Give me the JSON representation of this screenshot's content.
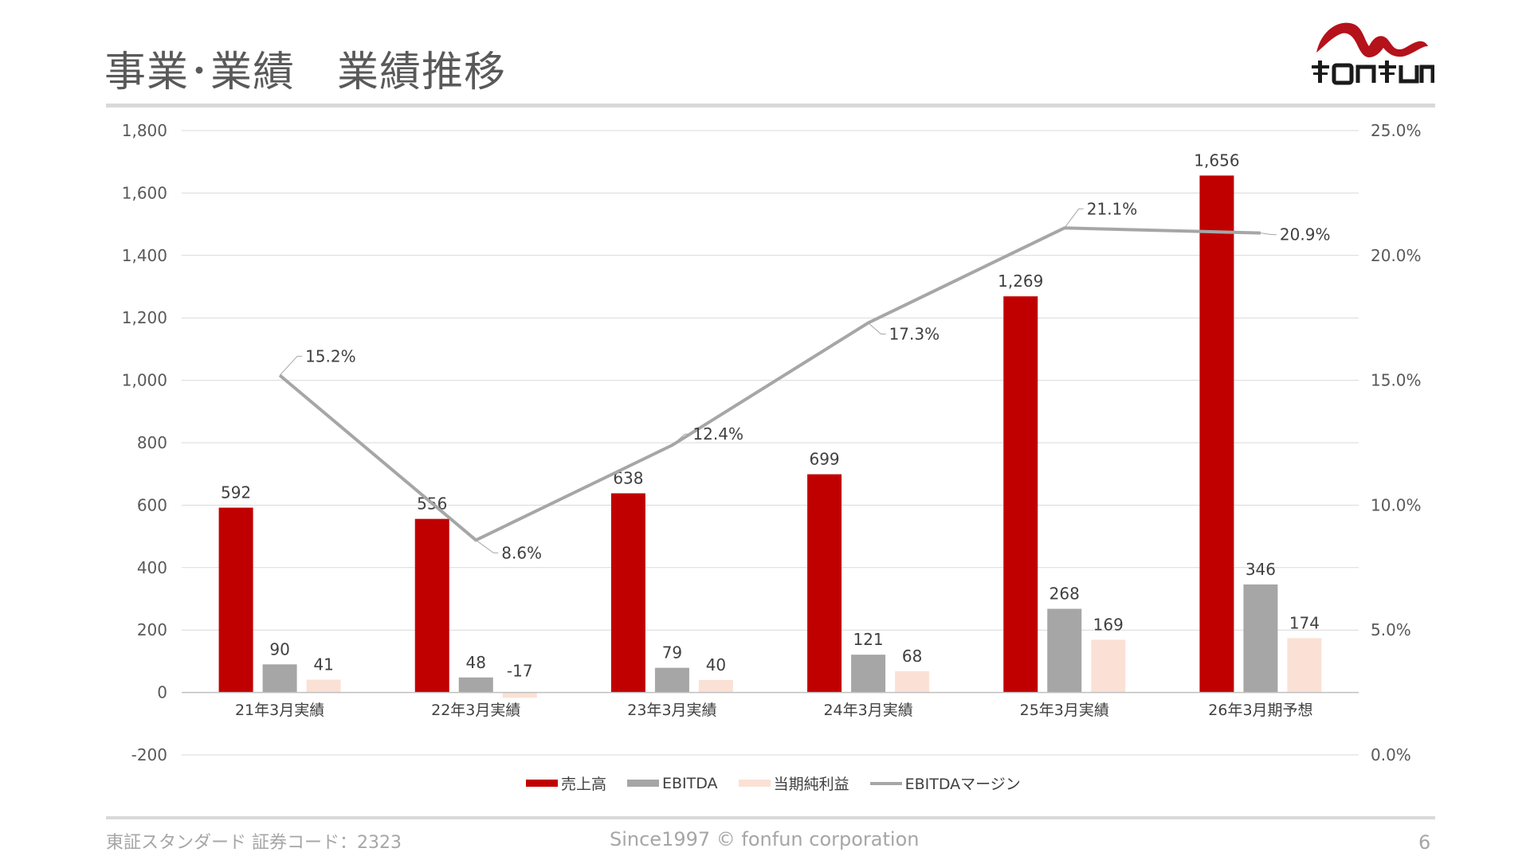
{
  "page": {
    "title": "事業･業績　業績推移",
    "brand": "FONFUN",
    "footer_left": "東証スタンダード 証券コード：2323",
    "footer_center": "Since1997 © fonfun corporation",
    "page_number": "6"
  },
  "colors": {
    "sales": "#c00000",
    "ebitda": "#a6a6a6",
    "net_income": "#fbe1d5",
    "margin": "#a6a6a6",
    "logo": "#b5121b"
  },
  "chart_data": {
    "type": "bar",
    "categories": [
      "21年3月実績",
      "22年3月実績",
      "23年3月実績",
      "24年3月実績",
      "25年3月実績",
      "26年3月期予想"
    ],
    "series": [
      {
        "name": "売上高",
        "values": [
          592,
          556,
          638,
          699,
          1269,
          1656
        ],
        "labels": [
          "592",
          "556",
          "638",
          "699",
          "1,269",
          "1,656"
        ]
      },
      {
        "name": "EBITDA",
        "values": [
          90,
          48,
          79,
          121,
          268,
          346
        ],
        "labels": [
          "90",
          "48",
          "79",
          "121",
          "268",
          "346"
        ]
      },
      {
        "name": "当期純利益",
        "values": [
          41,
          -17,
          40,
          68,
          169,
          174
        ],
        "labels": [
          "41",
          "-17",
          "40",
          "68",
          "169",
          "174"
        ]
      }
    ],
    "line_series": {
      "name": "EBITDAマージン",
      "axis": "right",
      "values": [
        15.2,
        8.6,
        12.4,
        17.3,
        21.1,
        20.9
      ],
      "labels": [
        "15.2%",
        "8.6%",
        "12.4%",
        "17.3%",
        "21.1%",
        "20.9%"
      ]
    },
    "ylim": [
      -200,
      1800
    ],
    "yticks": [
      "-200",
      "0",
      "200",
      "400",
      "600",
      "800",
      "1,000",
      "1,200",
      "1,400",
      "1,600",
      "1,800"
    ],
    "y2lim": [
      0,
      25
    ],
    "y2ticks": [
      "0.0%",
      "5.0%",
      "10.0%",
      "15.0%",
      "20.0%",
      "25.0%"
    ],
    "grid": true,
    "legend": "bottom"
  }
}
